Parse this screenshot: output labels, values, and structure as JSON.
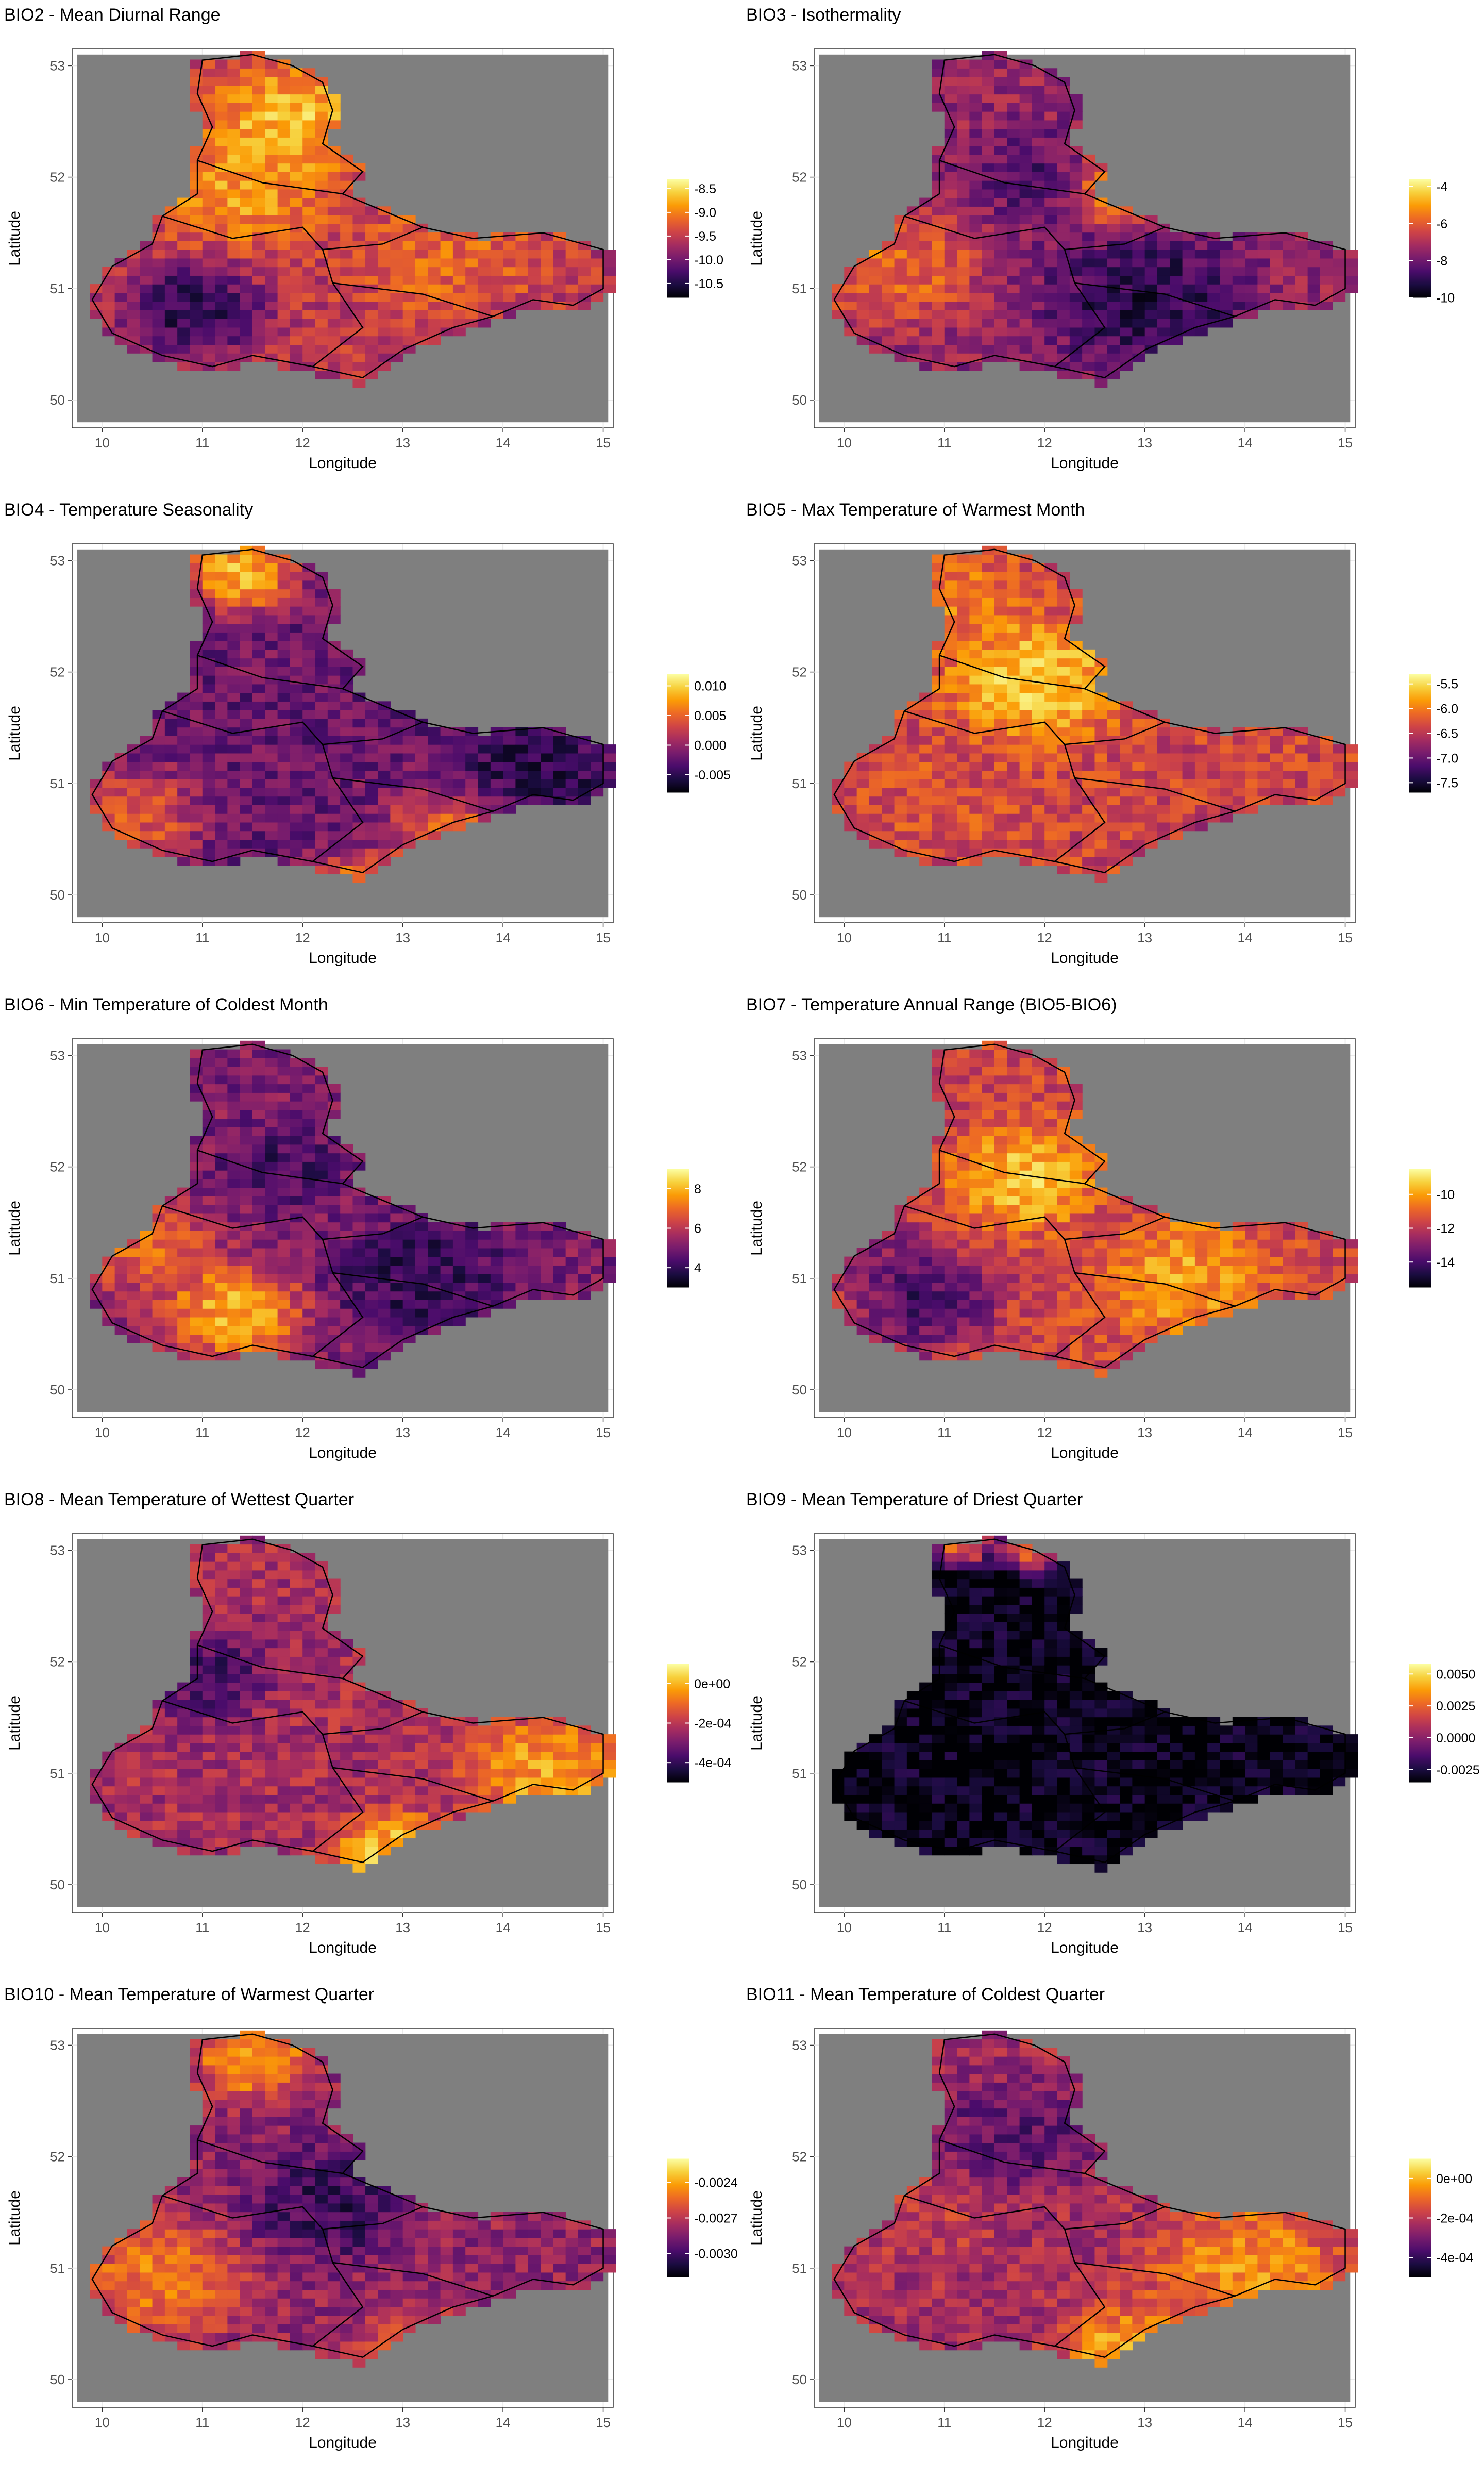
{
  "figure": {
    "background": "#ffffff",
    "panel_background": "#7f7f7f",
    "grid_color": "#ebebeb",
    "colormap": "inferno",
    "colormap_stops": [
      "#000004",
      "#1b0c41",
      "#4a0c6b",
      "#781c6d",
      "#a52c60",
      "#cf4446",
      "#ed6925",
      "#fb9b06",
      "#f7d13d",
      "#fcffa4"
    ]
  },
  "chart_data": [
    {
      "id": "bio2",
      "type": "heatmap",
      "title": "BIO2 - Mean Diurnal Range",
      "xlabel": "Longitude",
      "ylabel": "Latitude",
      "xticks": [
        "10",
        "11",
        "12",
        "13",
        "14",
        "15"
      ],
      "yticks": [
        "50",
        "51",
        "52",
        "53"
      ],
      "xlim": [
        9.7,
        15.1
      ],
      "ylim": [
        49.75,
        53.15
      ],
      "legend": {
        "placement": "right",
        "labels": [
          "-8.5",
          "-9.0",
          "-9.5",
          "-10.0",
          "-10.5"
        ],
        "min": -10.8,
        "max": -8.3
      },
      "hotspots": [
        {
          "lon": 11.9,
          "lat": 52.5,
          "v": 0.95,
          "r": 0.6
        },
        {
          "lon": 11.4,
          "lat": 51.9,
          "v": 0.85,
          "r": 0.6
        },
        {
          "lon": 10.9,
          "lat": 50.8,
          "v": 0.05,
          "r": 0.5
        },
        {
          "lon": 14.0,
          "lat": 50.3,
          "v": 0.05,
          "r": 0.5
        },
        {
          "lon": 13.5,
          "lat": 51.3,
          "v": 0.7,
          "r": 0.7
        }
      ],
      "base": 0.5
    },
    {
      "id": "bio3",
      "type": "heatmap",
      "title": "BIO3 - Isothermality",
      "xlabel": "Longitude",
      "ylabel": "Latitude",
      "xticks": [
        "10",
        "11",
        "12",
        "13",
        "14",
        "15"
      ],
      "yticks": [
        "50",
        "51",
        "52",
        "53"
      ],
      "xlim": [
        9.7,
        15.1
      ],
      "ylim": [
        49.75,
        53.15
      ],
      "legend": {
        "placement": "right",
        "labels": [
          "-4",
          "-6",
          "-8",
          "-10"
        ],
        "min": -10,
        "max": -3.6
      },
      "hotspots": [
        {
          "lon": 12.7,
          "lat": 51.9,
          "v": 0.95,
          "r": 0.4
        },
        {
          "lon": 10.5,
          "lat": 51.2,
          "v": 0.75,
          "r": 0.6
        },
        {
          "lon": 13.0,
          "lat": 50.9,
          "v": 0.05,
          "r": 0.7
        },
        {
          "lon": 12.0,
          "lat": 52.0,
          "v": 0.2,
          "r": 0.5
        }
      ],
      "base": 0.4
    },
    {
      "id": "bio4",
      "type": "heatmap",
      "title": "BIO4 - Temperature Seasonality",
      "xlabel": "Longitude",
      "ylabel": "Latitude",
      "xticks": [
        "10",
        "11",
        "12",
        "13",
        "14",
        "15"
      ],
      "yticks": [
        "50",
        "51",
        "52",
        "53"
      ],
      "xlim": [
        9.7,
        15.1
      ],
      "ylim": [
        49.75,
        53.15
      ],
      "legend": {
        "placement": "right",
        "labels": [
          "0.010",
          "0.005",
          "0.000",
          "-0.005"
        ],
        "min": -0.008,
        "max": 0.012
      },
      "hotspots": [
        {
          "lon": 11.4,
          "lat": 52.9,
          "v": 0.98,
          "r": 0.4
        },
        {
          "lon": 13.7,
          "lat": 50.5,
          "v": 0.85,
          "r": 0.6
        },
        {
          "lon": 12.5,
          "lat": 50.0,
          "v": 0.9,
          "r": 0.4
        },
        {
          "lon": 10.3,
          "lat": 50.7,
          "v": 0.7,
          "r": 0.5
        },
        {
          "lon": 14.2,
          "lat": 51.0,
          "v": 0.05,
          "r": 0.6
        }
      ],
      "base": 0.3
    },
    {
      "id": "bio5",
      "type": "heatmap",
      "title": "BIO5 - Max Temperature of Warmest Month",
      "xlabel": "Longitude",
      "ylabel": "Latitude",
      "xticks": [
        "10",
        "11",
        "12",
        "13",
        "14",
        "15"
      ],
      "yticks": [
        "50",
        "51",
        "52",
        "53"
      ],
      "xlim": [
        9.7,
        15.1
      ],
      "ylim": [
        49.75,
        53.15
      ],
      "legend": {
        "placement": "right",
        "labels": [
          "-5.5",
          "-6.0",
          "-6.5",
          "-7.0",
          "-7.5"
        ],
        "min": -7.7,
        "max": -5.3
      },
      "hotspots": [
        {
          "lon": 11.9,
          "lat": 51.9,
          "v": 0.98,
          "r": 0.6
        },
        {
          "lon": 11.2,
          "lat": 52.6,
          "v": 0.75,
          "r": 0.5
        },
        {
          "lon": 14.0,
          "lat": 50.3,
          "v": 0.05,
          "r": 0.4
        },
        {
          "lon": 10.8,
          "lat": 50.8,
          "v": 0.6,
          "r": 0.6
        }
      ],
      "base": 0.55
    },
    {
      "id": "bio6",
      "type": "heatmap",
      "title": "BIO6 - Min Temperature of Coldest Month",
      "xlabel": "Longitude",
      "ylabel": "Latitude",
      "xticks": [
        "10",
        "11",
        "12",
        "13",
        "14",
        "15"
      ],
      "yticks": [
        "50",
        "51",
        "52",
        "53"
      ],
      "xlim": [
        9.7,
        15.1
      ],
      "ylim": [
        49.75,
        53.15
      ],
      "legend": {
        "placement": "right",
        "labels": [
          "8",
          "6",
          "4"
        ],
        "min": 3,
        "max": 9
      },
      "hotspots": [
        {
          "lon": 11.3,
          "lat": 50.7,
          "v": 0.95,
          "r": 0.5
        },
        {
          "lon": 10.4,
          "lat": 51.3,
          "v": 0.75,
          "r": 0.5
        },
        {
          "lon": 13.2,
          "lat": 51.0,
          "v": 0.1,
          "r": 0.6
        },
        {
          "lon": 11.8,
          "lat": 52.0,
          "v": 0.15,
          "r": 0.4
        }
      ],
      "base": 0.35
    },
    {
      "id": "bio7",
      "type": "heatmap",
      "title": "BIO7 - Temperature Annual Range (BIO5-BIO6)",
      "xlabel": "Longitude",
      "ylabel": "Latitude",
      "xticks": [
        "10",
        "11",
        "12",
        "13",
        "14",
        "15"
      ],
      "yticks": [
        "50",
        "51",
        "52",
        "53"
      ],
      "xlim": [
        9.7,
        15.1
      ],
      "ylim": [
        49.75,
        53.15
      ],
      "legend": {
        "placement": "right",
        "labels": [
          "-10",
          "-12",
          "-14"
        ],
        "min": -15.5,
        "max": -8.5
      },
      "hotspots": [
        {
          "lon": 11.8,
          "lat": 51.9,
          "v": 0.95,
          "r": 0.5
        },
        {
          "lon": 13.4,
          "lat": 51.0,
          "v": 0.85,
          "r": 0.6
        },
        {
          "lon": 10.8,
          "lat": 50.8,
          "v": 0.1,
          "r": 0.5
        },
        {
          "lon": 10.3,
          "lat": 51.2,
          "v": 0.3,
          "r": 0.4
        }
      ],
      "base": 0.55
    },
    {
      "id": "bio8",
      "type": "heatmap",
      "title": "BIO8 - Mean Temperature of Wettest Quarter",
      "xlabel": "Longitude",
      "ylabel": "Latitude",
      "xticks": [
        "10",
        "11",
        "12",
        "13",
        "14",
        "15"
      ],
      "yticks": [
        "50",
        "51",
        "52",
        "53"
      ],
      "xlim": [
        9.7,
        15.1
      ],
      "ylim": [
        49.75,
        53.15
      ],
      "legend": {
        "placement": "right",
        "labels": [
          "0e+00",
          "-2e-04",
          "-4e-04"
        ],
        "min": -0.0005,
        "max": 0.0001
      },
      "hotspots": [
        {
          "lon": 12.9,
          "lat": 50.3,
          "v": 0.98,
          "r": 0.4
        },
        {
          "lon": 14.5,
          "lat": 51.0,
          "v": 0.9,
          "r": 0.6
        },
        {
          "lon": 11.0,
          "lat": 51.9,
          "v": 0.15,
          "r": 0.5
        }
      ],
      "base": 0.45
    },
    {
      "id": "bio9",
      "type": "heatmap",
      "title": "BIO9 - Mean Temperature of Driest Quarter",
      "xlabel": "Longitude",
      "ylabel": "Latitude",
      "xticks": [
        "10",
        "11",
        "12",
        "13",
        "14",
        "15"
      ],
      "yticks": [
        "50",
        "51",
        "52",
        "53"
      ],
      "xlim": [
        9.7,
        15.1
      ],
      "ylim": [
        49.75,
        53.15
      ],
      "legend": {
        "placement": "right",
        "labels": [
          "0.0050",
          "0.0025",
          "0.0000",
          "-0.0025"
        ],
        "min": -0.0035,
        "max": 0.0058
      },
      "hotspots": [
        {
          "lon": 11.9,
          "lat": 53.05,
          "v": 0.95,
          "r": 0.25
        },
        {
          "lon": 11.2,
          "lat": 53.05,
          "v": 0.9,
          "r": 0.2
        }
      ],
      "base": 0.03
    },
    {
      "id": "bio10",
      "type": "heatmap",
      "title": "BIO10 - Mean Temperature of Warmest Quarter",
      "xlabel": "Longitude",
      "ylabel": "Latitude",
      "xticks": [
        "10",
        "11",
        "12",
        "13",
        "14",
        "15"
      ],
      "yticks": [
        "50",
        "51",
        "52",
        "53"
      ],
      "xlim": [
        9.7,
        15.1
      ],
      "ylim": [
        49.75,
        53.15
      ],
      "legend": {
        "placement": "right",
        "labels": [
          "-0.0024",
          "-0.0027",
          "-0.0030"
        ],
        "min": -0.0032,
        "max": -0.0022
      },
      "hotspots": [
        {
          "lon": 11.5,
          "lat": 52.9,
          "v": 0.95,
          "r": 0.4
        },
        {
          "lon": 10.6,
          "lat": 50.9,
          "v": 0.8,
          "r": 0.6
        },
        {
          "lon": 13.2,
          "lat": 50.1,
          "v": 0.8,
          "r": 0.5
        },
        {
          "lon": 14.3,
          "lat": 50.4,
          "v": 0.02,
          "r": 0.3
        },
        {
          "lon": 12.3,
          "lat": 51.6,
          "v": 0.1,
          "r": 0.6
        }
      ],
      "base": 0.4
    },
    {
      "id": "bio11",
      "type": "heatmap",
      "title": "BIO11 - Mean Temperature of Coldest Quarter",
      "xlabel": "Longitude",
      "ylabel": "Latitude",
      "xticks": [
        "10",
        "11",
        "12",
        "13",
        "14",
        "15"
      ],
      "yticks": [
        "50",
        "51",
        "52",
        "53"
      ],
      "xlim": [
        9.7,
        15.1
      ],
      "ylim": [
        49.75,
        53.15
      ],
      "legend": {
        "placement": "right",
        "labels": [
          "0e+00",
          "-2e-04",
          "-4e-04"
        ],
        "min": -0.0005,
        "max": 0.0001
      },
      "hotspots": [
        {
          "lon": 12.9,
          "lat": 50.2,
          "v": 0.98,
          "r": 0.5
        },
        {
          "lon": 14.0,
          "lat": 51.0,
          "v": 0.85,
          "r": 0.7
        },
        {
          "lon": 11.7,
          "lat": 52.2,
          "v": 0.2,
          "r": 0.6
        },
        {
          "lon": 10.9,
          "lat": 51.5,
          "v": 0.55,
          "r": 0.5
        }
      ],
      "base": 0.45
    }
  ]
}
